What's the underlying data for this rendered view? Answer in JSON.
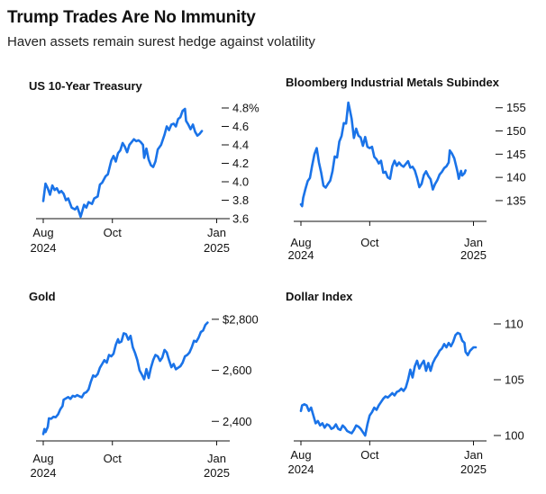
{
  "header": {
    "title": "Trump Trades Are No Immunity",
    "subtitle": "Haven assets remain surest hedge against volatility"
  },
  "chart_data": [
    {
      "id": "treasury",
      "type": "line",
      "title": "US 10-Year Treasury",
      "color": "#1a73e8",
      "ylim": [
        3.6,
        4.8
      ],
      "yticks": [
        {
          "v": 4.8,
          "label": "4.8%"
        },
        {
          "v": 4.6,
          "label": "4.6"
        },
        {
          "v": 4.4,
          "label": "4.4"
        },
        {
          "v": 4.2,
          "label": "4.2"
        },
        {
          "v": 4.0,
          "label": "4.0"
        },
        {
          "v": 3.8,
          "label": "3.8"
        },
        {
          "v": 3.6,
          "label": "3.6"
        }
      ],
      "x_range": [
        0,
        155
      ],
      "xticks": [
        {
          "v": 0,
          "label": "Aug",
          "sub": "2024"
        },
        {
          "v": 61,
          "label": "Oct",
          "sub": ""
        },
        {
          "v": 153,
          "label": "Jan",
          "sub": "2025"
        }
      ],
      "points": [
        [
          0,
          3.79
        ],
        [
          2,
          3.98
        ],
        [
          4,
          3.93
        ],
        [
          6,
          3.86
        ],
        [
          8,
          3.96
        ],
        [
          10,
          3.91
        ],
        [
          12,
          3.93
        ],
        [
          14,
          3.88
        ],
        [
          16,
          3.9
        ],
        [
          18,
          3.87
        ],
        [
          20,
          3.8
        ],
        [
          22,
          3.82
        ],
        [
          25,
          3.72
        ],
        [
          28,
          3.7
        ],
        [
          30,
          3.73
        ],
        [
          33,
          3.62
        ],
        [
          36,
          3.75
        ],
        [
          38,
          3.72
        ],
        [
          40,
          3.78
        ],
        [
          43,
          3.76
        ],
        [
          45,
          3.82
        ],
        [
          48,
          3.84
        ],
        [
          50,
          3.97
        ],
        [
          52,
          3.99
        ],
        [
          55,
          4.06
        ],
        [
          57,
          4.08
        ],
        [
          60,
          4.23
        ],
        [
          62,
          4.28
        ],
        [
          64,
          4.22
        ],
        [
          66,
          4.31
        ],
        [
          68,
          4.34
        ],
        [
          70,
          4.42
        ],
        [
          72,
          4.38
        ],
        [
          74,
          4.32
        ],
        [
          76,
          4.4
        ],
        [
          78,
          4.43
        ],
        [
          80,
          4.46
        ],
        [
          82,
          4.44
        ],
        [
          84,
          4.45
        ],
        [
          86,
          4.43
        ],
        [
          88,
          4.4
        ],
        [
          89,
          4.26
        ],
        [
          91,
          4.36
        ],
        [
          93,
          4.24
        ],
        [
          95,
          4.18
        ],
        [
          97,
          4.16
        ],
        [
          99,
          4.22
        ],
        [
          101,
          4.35
        ],
        [
          104,
          4.4
        ],
        [
          107,
          4.51
        ],
        [
          109,
          4.6
        ],
        [
          111,
          4.56
        ],
        [
          113,
          4.62
        ],
        [
          115,
          4.63
        ],
        [
          117,
          4.6
        ],
        [
          119,
          4.68
        ],
        [
          121,
          4.7
        ],
        [
          123,
          4.77
        ],
        [
          125,
          4.79
        ],
        [
          126,
          4.66
        ],
        [
          128,
          4.62
        ],
        [
          130,
          4.57
        ],
        [
          132,
          4.62
        ],
        [
          134,
          4.54
        ],
        [
          136,
          4.5
        ],
        [
          138,
          4.52
        ],
        [
          140,
          4.55
        ]
      ]
    },
    {
      "id": "metals",
      "type": "line",
      "title": "Bloomberg Industrial Metals Subindex",
      "color": "#1a73e8",
      "ylim": [
        131.5,
        156.5
      ],
      "yticks": [
        {
          "v": 155,
          "label": "155"
        },
        {
          "v": 150,
          "label": "150"
        },
        {
          "v": 145,
          "label": "145"
        },
        {
          "v": 140,
          "label": "140"
        },
        {
          "v": 135,
          "label": "135"
        }
      ],
      "x_range": [
        0,
        155
      ],
      "xticks": [
        {
          "v": 0,
          "label": "Aug",
          "sub": "2024"
        },
        {
          "v": 61,
          "label": "Oct",
          "sub": ""
        },
        {
          "v": 153,
          "label": "Jan",
          "sub": "2025"
        }
      ],
      "points": [
        [
          0,
          134.2
        ],
        [
          1,
          133.8
        ],
        [
          2,
          135.6
        ],
        [
          4,
          137.5
        ],
        [
          6,
          139.2
        ],
        [
          8,
          139.9
        ],
        [
          10,
          142.6
        ],
        [
          12,
          145.0
        ],
        [
          14,
          146.3
        ],
        [
          16,
          143.2
        ],
        [
          18,
          141.0
        ],
        [
          20,
          138.2
        ],
        [
          22,
          137.8
        ],
        [
          24,
          138.6
        ],
        [
          26,
          139.3
        ],
        [
          28,
          141.3
        ],
        [
          30,
          144.5
        ],
        [
          32,
          144.3
        ],
        [
          34,
          147.7
        ],
        [
          36,
          148.9
        ],
        [
          38,
          151.7
        ],
        [
          40,
          151.6
        ],
        [
          42,
          156.1
        ],
        [
          43,
          155.0
        ],
        [
          45,
          152.6
        ],
        [
          47,
          148.5
        ],
        [
          49,
          150.5
        ],
        [
          51,
          149.0
        ],
        [
          53,
          148.6
        ],
        [
          55,
          146.8
        ],
        [
          57,
          148.7
        ],
        [
          59,
          146.6
        ],
        [
          61,
          146.3
        ],
        [
          63,
          146.6
        ],
        [
          65,
          144.4
        ],
        [
          67,
          143.9
        ],
        [
          69,
          143.0
        ],
        [
          71,
          143.6
        ],
        [
          73,
          141.0
        ],
        [
          75,
          141.2
        ],
        [
          77,
          140.0
        ],
        [
          79,
          139.7
        ],
        [
          81,
          142.4
        ],
        [
          83,
          143.6
        ],
        [
          85,
          142.5
        ],
        [
          87,
          143.2
        ],
        [
          89,
          142.6
        ],
        [
          91,
          142.3
        ],
        [
          93,
          142.9
        ],
        [
          95,
          143.5
        ],
        [
          97,
          142.1
        ],
        [
          99,
          142.3
        ],
        [
          101,
          141.5
        ],
        [
          103,
          139.9
        ],
        [
          105,
          137.9
        ],
        [
          107,
          138.6
        ],
        [
          109,
          140.5
        ],
        [
          111,
          141.3
        ],
        [
          113,
          140.3
        ],
        [
          115,
          139.6
        ],
        [
          117,
          137.4
        ],
        [
          119,
          138.6
        ],
        [
          121,
          139.4
        ],
        [
          123,
          140.6
        ],
        [
          125,
          141.2
        ],
        [
          127,
          142.0
        ],
        [
          129,
          142.4
        ],
        [
          131,
          143.2
        ],
        [
          132,
          145.8
        ],
        [
          134,
          145.1
        ],
        [
          136,
          144.1
        ],
        [
          138,
          142.1
        ],
        [
          139,
          141.0
        ],
        [
          140,
          139.7
        ],
        [
          142,
          141.4
        ],
        [
          143,
          140.4
        ],
        [
          145,
          140.9
        ],
        [
          146,
          141.5
        ]
      ]
    },
    {
      "id": "gold",
      "type": "line",
      "title": "Gold",
      "color": "#1a73e8",
      "ylim": [
        2341,
        2810
      ],
      "yticks": [
        {
          "v": 2800,
          "label": "$2,800"
        },
        {
          "v": 2600,
          "label": "2,600"
        },
        {
          "v": 2400,
          "label": "2,400"
        }
      ],
      "x_range": [
        0,
        155
      ],
      "xticks": [
        {
          "v": 0,
          "label": "Aug",
          "sub": "2024"
        },
        {
          "v": 61,
          "label": "Oct",
          "sub": ""
        },
        {
          "v": 153,
          "label": "Jan",
          "sub": "2025"
        }
      ],
      "points": [
        [
          0,
          2350
        ],
        [
          1,
          2370
        ],
        [
          2,
          2358
        ],
        [
          4,
          2378
        ],
        [
          5,
          2412
        ],
        [
          7,
          2410
        ],
        [
          9,
          2418
        ],
        [
          11,
          2416
        ],
        [
          13,
          2427
        ],
        [
          15,
          2447
        ],
        [
          17,
          2460
        ],
        [
          18,
          2485
        ],
        [
          20,
          2490
        ],
        [
          22,
          2495
        ],
        [
          24,
          2488
        ],
        [
          26,
          2500
        ],
        [
          28,
          2497
        ],
        [
          30,
          2503
        ],
        [
          32,
          2498
        ],
        [
          34,
          2494
        ],
        [
          36,
          2510
        ],
        [
          38,
          2514
        ],
        [
          40,
          2525
        ],
        [
          42,
          2555
        ],
        [
          44,
          2580
        ],
        [
          46,
          2575
        ],
        [
          48,
          2585
        ],
        [
          50,
          2610
        ],
        [
          52,
          2625
        ],
        [
          54,
          2640
        ],
        [
          56,
          2630
        ],
        [
          58,
          2660
        ],
        [
          60,
          2655
        ],
        [
          62,
          2665
        ],
        [
          64,
          2700
        ],
        [
          66,
          2722
        ],
        [
          67,
          2708
        ],
        [
          69,
          2713
        ],
        [
          71,
          2745
        ],
        [
          73,
          2742
        ],
        [
          75,
          2720
        ],
        [
          77,
          2735
        ],
        [
          79,
          2690
        ],
        [
          81,
          2668
        ],
        [
          83,
          2640
        ],
        [
          85,
          2600
        ],
        [
          87,
          2583
        ],
        [
          89,
          2565
        ],
        [
          91,
          2605
        ],
        [
          93,
          2570
        ],
        [
          95,
          2610
        ],
        [
          97,
          2640
        ],
        [
          99,
          2660
        ],
        [
          101,
          2655
        ],
        [
          103,
          2637
        ],
        [
          105,
          2650
        ],
        [
          107,
          2680
        ],
        [
          109,
          2670
        ],
        [
          111,
          2640
        ],
        [
          113,
          2612
        ],
        [
          115,
          2625
        ],
        [
          117,
          2604
        ],
        [
          119,
          2610
        ],
        [
          121,
          2616
        ],
        [
          123,
          2630
        ],
        [
          125,
          2655
        ],
        [
          127,
          2660
        ],
        [
          129,
          2670
        ],
        [
          131,
          2690
        ],
        [
          133,
          2716
        ],
        [
          135,
          2712
        ],
        [
          137,
          2728
        ],
        [
          139,
          2750
        ],
        [
          141,
          2756
        ],
        [
          143,
          2778
        ],
        [
          145,
          2787
        ]
      ]
    },
    {
      "id": "dollar",
      "type": "line",
      "title": "Dollar Index",
      "color": "#1a73e8",
      "ylim": [
        100,
        110
      ],
      "yticks": [
        {
          "v": 110,
          "label": "110"
        },
        {
          "v": 105,
          "label": "105"
        },
        {
          "v": 100,
          "label": "100"
        }
      ],
      "x_range": [
        0,
        155
      ],
      "xticks": [
        {
          "v": 0,
          "label": "Aug",
          "sub": "2024"
        },
        {
          "v": 61,
          "label": "Oct",
          "sub": ""
        },
        {
          "v": 153,
          "label": "Jan",
          "sub": "2025"
        }
      ],
      "points": [
        [
          0,
          102.2
        ],
        [
          1,
          102.7
        ],
        [
          3,
          102.8
        ],
        [
          5,
          102.7
        ],
        [
          7,
          102.2
        ],
        [
          9,
          102.5
        ],
        [
          11,
          101.8
        ],
        [
          13,
          101.1
        ],
        [
          15,
          101.3
        ],
        [
          17,
          100.9
        ],
        [
          19,
          101.1
        ],
        [
          21,
          100.7
        ],
        [
          23,
          101.0
        ],
        [
          25,
          100.9
        ],
        [
          27,
          100.6
        ],
        [
          29,
          100.7
        ],
        [
          31,
          101.0
        ],
        [
          33,
          100.6
        ],
        [
          35,
          100.5
        ],
        [
          37,
          100.9
        ],
        [
          39,
          100.7
        ],
        [
          41,
          100.4
        ],
        [
          43,
          100.3
        ],
        [
          45,
          100.2
        ],
        [
          47,
          100.5
        ],
        [
          49,
          100.9
        ],
        [
          51,
          100.8
        ],
        [
          53,
          100.6
        ],
        [
          55,
          100.3
        ],
        [
          57,
          100.0
        ],
        [
          59,
          101.0
        ],
        [
          61,
          101.8
        ],
        [
          63,
          102.1
        ],
        [
          65,
          102.5
        ],
        [
          67,
          102.3
        ],
        [
          69,
          102.7
        ],
        [
          71,
          103.0
        ],
        [
          73,
          103.3
        ],
        [
          75,
          103.5
        ],
        [
          77,
          103.4
        ],
        [
          79,
          103.6
        ],
        [
          81,
          103.8
        ],
        [
          83,
          103.6
        ],
        [
          85,
          103.9
        ],
        [
          87,
          104.0
        ],
        [
          89,
          104.2
        ],
        [
          91,
          104.0
        ],
        [
          93,
          104.3
        ],
        [
          95,
          105.0
        ],
        [
          97,
          105.9
        ],
        [
          99,
          105.2
        ],
        [
          101,
          106.2
        ],
        [
          103,
          106.7
        ],
        [
          105,
          106.0
        ],
        [
          107,
          106.4
        ],
        [
          109,
          106.7
        ],
        [
          111,
          105.8
        ],
        [
          113,
          106.5
        ],
        [
          115,
          105.8
        ],
        [
          117,
          106.5
        ],
        [
          119,
          106.9
        ],
        [
          121,
          107.2
        ],
        [
          123,
          107.6
        ],
        [
          125,
          107.8
        ],
        [
          127,
          108.2
        ],
        [
          129,
          107.9
        ],
        [
          131,
          108.3
        ],
        [
          133,
          108.0
        ],
        [
          135,
          108.4
        ],
        [
          137,
          109.0
        ],
        [
          139,
          109.2
        ],
        [
          141,
          109.1
        ],
        [
          143,
          108.5
        ],
        [
          145,
          108.3
        ],
        [
          146,
          107.5
        ],
        [
          148,
          107.2
        ],
        [
          150,
          107.6
        ],
        [
          152,
          107.8
        ],
        [
          153,
          107.9
        ],
        [
          155,
          107.9
        ]
      ]
    }
  ]
}
